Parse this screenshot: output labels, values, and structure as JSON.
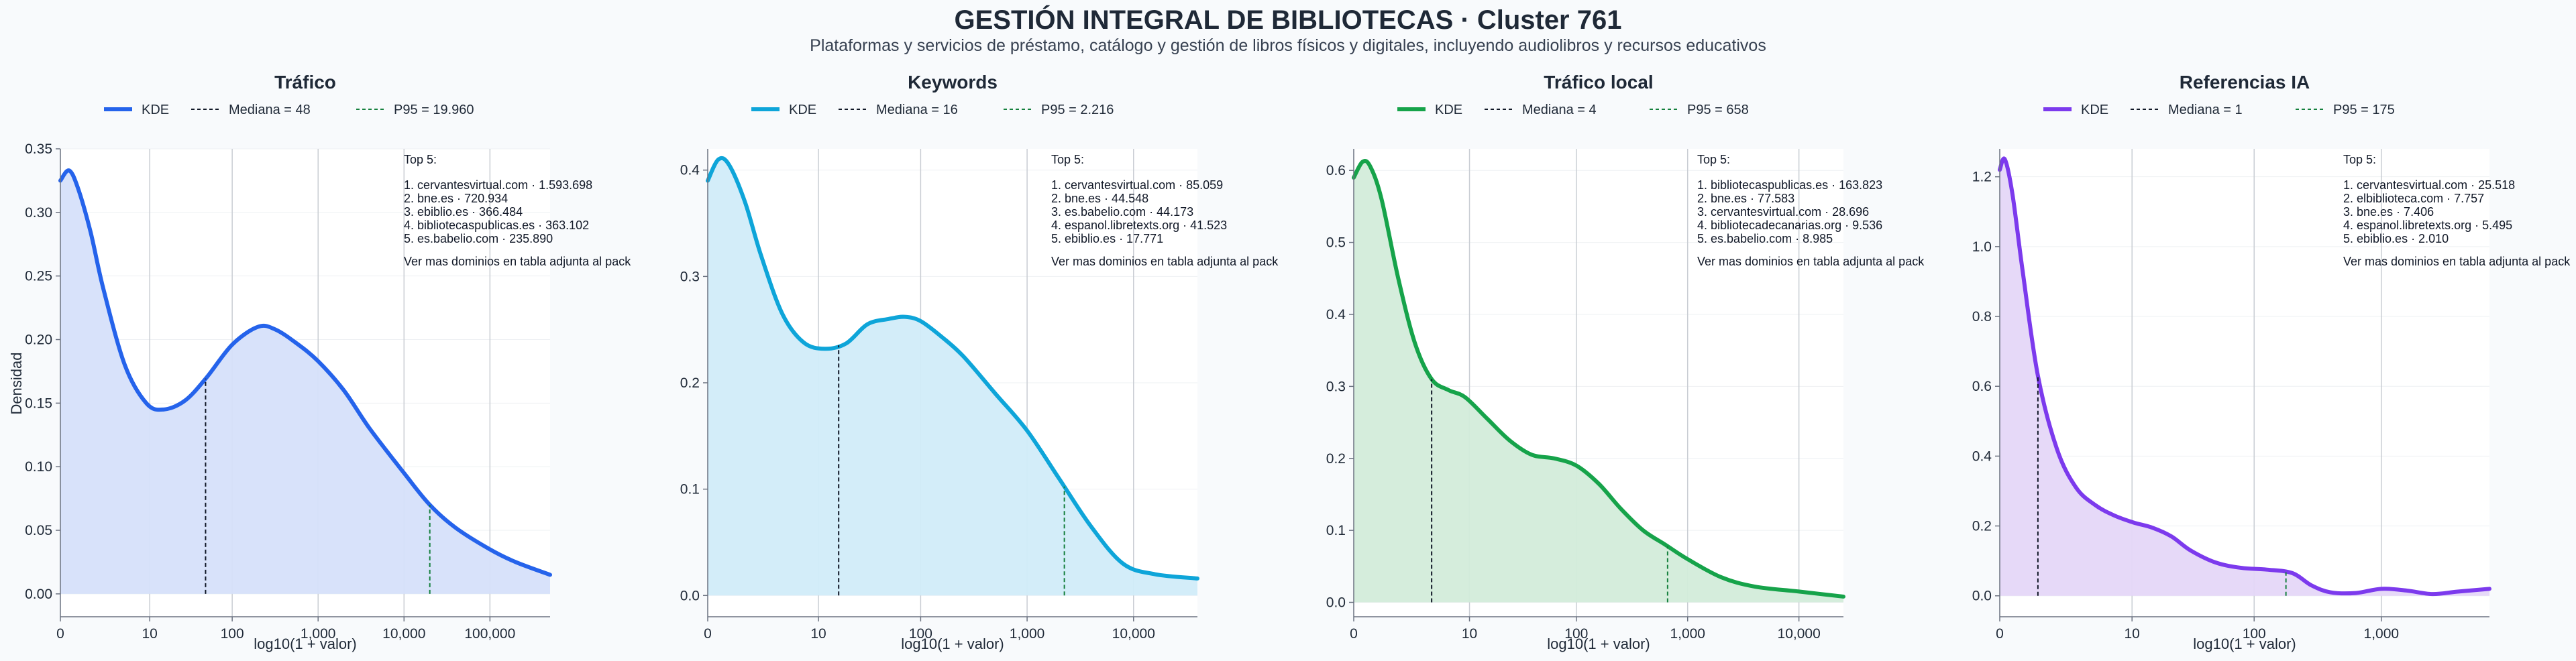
{
  "header": {
    "title": "GESTIÓN INTEGRAL DE BIBLIOTECAS · Cluster 761",
    "subtitle": "Plataformas y servicios de préstamo, catálogo y gestión de libros físicos y digitales, incluyendo audiolibros y recursos educativos"
  },
  "shared": {
    "ylabel": "Densidad",
    "xlabel": "log10(1 + valor)",
    "top_header": "Top 5:",
    "top_footer": "Ver mas dominios en tabla adjunta al pack",
    "legend_kde": "KDE"
  },
  "chart_data": [
    {
      "type": "area",
      "title": "Tráfico",
      "color": "#2563eb",
      "fill": "#d6e0fa",
      "median_label": "Mediana = 48",
      "p95_label": "P95 = 19.960",
      "median_x": 1.69,
      "p95_x": 4.3,
      "xlim": [
        0,
        5.7
      ],
      "ylim": [
        -0.018,
        0.35
      ],
      "yticks": [
        0.0,
        0.05,
        0.1,
        0.15,
        0.2,
        0.25,
        0.3,
        0.35
      ],
      "ytick_labels": [
        "0.00",
        "0.05",
        "0.10",
        "0.15",
        "0.20",
        "0.25",
        "0.30",
        "0.35"
      ],
      "xticks": [
        0,
        1.04,
        2.0,
        3.0,
        4.0,
        5.0
      ],
      "xtick_labels": [
        "0",
        "10",
        "100",
        "1,000",
        "10,000",
        "100,000"
      ],
      "x": [
        0,
        0.1,
        0.2,
        0.35,
        0.5,
        0.75,
        1.0,
        1.2,
        1.45,
        1.7,
        2.0,
        2.3,
        2.5,
        2.75,
        3.0,
        3.3,
        3.6,
        4.0,
        4.3,
        4.6,
        5.0,
        5.3,
        5.7
      ],
      "y": [
        0.325,
        0.333,
        0.32,
        0.285,
        0.24,
        0.18,
        0.15,
        0.145,
        0.152,
        0.17,
        0.196,
        0.21,
        0.208,
        0.197,
        0.183,
        0.16,
        0.13,
        0.095,
        0.07,
        0.052,
        0.035,
        0.025,
        0.015
      ],
      "top5": [
        "1. cervantesvirtual.com · 1.593.698",
        "2. bne.es · 720.934",
        "3. ebiblio.es · 366.484",
        "4. bibliotecaspublicas.es · 363.102",
        "5. es.babelio.com · 235.890"
      ]
    },
    {
      "type": "area",
      "title": "Keywords",
      "color": "#0ea5d9",
      "fill": "#d1ecf9",
      "median_label": "Mediana = 16",
      "p95_label": "P95 = 2.216",
      "median_x": 1.23,
      "p95_x": 3.35,
      "xlim": [
        0,
        4.6
      ],
      "ylim": [
        -0.02,
        0.42
      ],
      "yticks": [
        0.0,
        0.1,
        0.2,
        0.3,
        0.4
      ],
      "ytick_labels": [
        "0.0",
        "0.1",
        "0.2",
        "0.3",
        "0.4"
      ],
      "xticks": [
        0,
        1.04,
        2.0,
        3.0,
        4.0
      ],
      "xtick_labels": [
        "0",
        "10",
        "100",
        "1,000",
        "10,000"
      ],
      "x": [
        0,
        0.1,
        0.2,
        0.35,
        0.5,
        0.7,
        0.9,
        1.1,
        1.3,
        1.5,
        1.7,
        1.85,
        2.0,
        2.2,
        2.4,
        2.7,
        3.0,
        3.3,
        3.6,
        3.9,
        4.2,
        4.6
      ],
      "y": [
        0.39,
        0.41,
        0.405,
        0.37,
        0.32,
        0.265,
        0.238,
        0.232,
        0.237,
        0.255,
        0.26,
        0.262,
        0.258,
        0.243,
        0.225,
        0.19,
        0.155,
        0.11,
        0.065,
        0.03,
        0.02,
        0.016
      ],
      "top5": [
        "1. cervantesvirtual.com · 85.059",
        "2. bne.es · 44.548",
        "3. es.babelio.com · 44.173",
        "4. espanol.libretexts.org · 41.523",
        "5. ebiblio.es · 17.771"
      ]
    },
    {
      "type": "area",
      "title": "Tráfico local",
      "color": "#16a34a",
      "fill": "#d3ecda",
      "median_label": "Mediana = 4",
      "p95_label": "P95 = 658",
      "median_x": 0.7,
      "p95_x": 2.82,
      "xlim": [
        0,
        4.4
      ],
      "ylim": [
        -0.02,
        0.63
      ],
      "yticks": [
        0.0,
        0.1,
        0.2,
        0.3,
        0.4,
        0.5,
        0.6
      ],
      "ytick_labels": [
        "0.0",
        "0.1",
        "0.2",
        "0.3",
        "0.4",
        "0.5",
        "0.6"
      ],
      "xticks": [
        0,
        1.04,
        2.0,
        3.0,
        4.0
      ],
      "xtick_labels": [
        "0",
        "10",
        "100",
        "1,000",
        "10,000"
      ],
      "x": [
        0,
        0.08,
        0.15,
        0.25,
        0.4,
        0.55,
        0.7,
        0.85,
        1.0,
        1.2,
        1.4,
        1.6,
        1.8,
        2.0,
        2.2,
        2.4,
        2.6,
        2.8,
        3.0,
        3.3,
        3.6,
        4.0,
        4.4
      ],
      "y": [
        0.59,
        0.612,
        0.605,
        0.56,
        0.45,
        0.36,
        0.31,
        0.295,
        0.285,
        0.255,
        0.225,
        0.205,
        0.2,
        0.19,
        0.165,
        0.13,
        0.1,
        0.08,
        0.06,
        0.035,
        0.022,
        0.015,
        0.008
      ],
      "top5": [
        "1. bibliotecaspublicas.es · 163.823",
        "2. bne.es · 77.583",
        "3. cervantesvirtual.com · 28.696",
        "4. bibliotecadecanarias.org · 9.536",
        "5. es.babelio.com · 8.985"
      ]
    },
    {
      "type": "area",
      "title": "Referencias IA",
      "color": "#7c3aed",
      "fill": "#e5d7f8",
      "median_label": "Mediana = 1",
      "p95_label": "P95 = 175",
      "median_x": 0.3,
      "p95_x": 2.25,
      "xlim": [
        0,
        3.85
      ],
      "ylim": [
        -0.06,
        1.28
      ],
      "yticks": [
        0.0,
        0.2,
        0.4,
        0.6,
        0.8,
        1.0,
        1.2
      ],
      "ytick_labels": [
        "0.0",
        "0.2",
        "0.4",
        "0.6",
        "0.8",
        "1.0",
        "1.2"
      ],
      "xticks": [
        0,
        1.04,
        2.0,
        3.0
      ],
      "xtick_labels": [
        "0",
        "10",
        "100",
        "1,000"
      ],
      "x": [
        0,
        0.04,
        0.1,
        0.18,
        0.3,
        0.45,
        0.6,
        0.75,
        0.9,
        1.05,
        1.2,
        1.35,
        1.5,
        1.7,
        1.9,
        2.1,
        2.3,
        2.45,
        2.6,
        2.8,
        3.0,
        3.2,
        3.4,
        3.6,
        3.85
      ],
      "y": [
        1.22,
        1.25,
        1.15,
        0.93,
        0.63,
        0.42,
        0.31,
        0.26,
        0.23,
        0.21,
        0.195,
        0.17,
        0.13,
        0.095,
        0.08,
        0.075,
        0.065,
        0.03,
        0.01,
        0.008,
        0.02,
        0.015,
        0.005,
        0.012,
        0.02
      ],
      "top5": [
        "1. cervantesvirtual.com · 25.518",
        "2. elbiblioteca.com · 7.757",
        "3. bne.es · 7.406",
        "4. espanol.libretexts.org · 5.495",
        "5. ebiblio.es · 2.010"
      ]
    }
  ]
}
